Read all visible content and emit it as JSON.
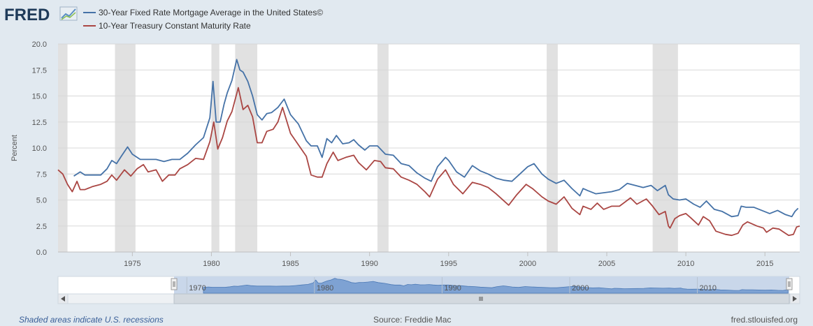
{
  "logo": "FRED",
  "footer": {
    "left": "Shaded areas indicate U.S. recessions",
    "source": "Source: Freddie Mac",
    "site": "fred.stlouisfed.org"
  },
  "colors": {
    "series1": "#4572a7",
    "series2": "#aa4643",
    "recession": "#e1e1e1",
    "background": "#e1e9f0"
  },
  "chart_data": {
    "type": "line",
    "ylabel": "Percent",
    "xlim": [
      1970.3,
      2017.2
    ],
    "ylim": [
      0,
      20
    ],
    "yticks": [
      0.0,
      2.5,
      5.0,
      7.5,
      10.0,
      12.5,
      15.0,
      17.5,
      20.0
    ],
    "ytick_labels": [
      "0.0",
      "2.5",
      "5.0",
      "7.5",
      "10.0",
      "12.5",
      "15.0",
      "17.5",
      "20.0"
    ],
    "xticks": [
      1975,
      1980,
      1985,
      1990,
      1995,
      2000,
      2005,
      2010,
      2015
    ],
    "xtick_labels": [
      "1975",
      "1980",
      "1985",
      "1990",
      "1995",
      "2000",
      "2005",
      "2010",
      "2015"
    ],
    "grid": true,
    "legend": "top-left",
    "recessions": [
      [
        1969.9,
        1970.9
      ],
      [
        1973.9,
        1975.2
      ],
      [
        1980.0,
        1980.5
      ],
      [
        1981.5,
        1982.9
      ],
      [
        1990.5,
        1991.2
      ],
      [
        2001.2,
        2001.9
      ],
      [
        2007.9,
        2009.5
      ]
    ],
    "series": [
      {
        "name": "30-Year Fixed Rate Mortgage Average in the United States©",
        "x": [
          1971.3,
          1971.7,
          1972.0,
          1972.5,
          1973.0,
          1973.4,
          1973.7,
          1974.0,
          1974.3,
          1974.7,
          1975.0,
          1975.5,
          1976.0,
          1976.5,
          1977.0,
          1977.5,
          1978.0,
          1978.5,
          1979.0,
          1979.5,
          1979.9,
          1980.1,
          1980.3,
          1980.55,
          1980.8,
          1981.0,
          1981.3,
          1981.6,
          1981.8,
          1982.0,
          1982.3,
          1982.6,
          1982.9,
          1983.2,
          1983.5,
          1983.8,
          1984.2,
          1984.6,
          1985.0,
          1985.5,
          1986.0,
          1986.3,
          1986.7,
          1987.0,
          1987.3,
          1987.6,
          1987.9,
          1988.3,
          1988.7,
          1989.0,
          1989.3,
          1989.7,
          1990.0,
          1990.5,
          1991.0,
          1991.5,
          1992.0,
          1992.5,
          1993.0,
          1993.5,
          1993.9,
          1994.3,
          1994.8,
          1995.0,
          1995.5,
          1996.0,
          1996.5,
          1997.0,
          1997.5,
          1998.0,
          1998.5,
          1999.0,
          1999.5,
          2000.0,
          2000.4,
          2000.9,
          2001.3,
          2001.8,
          2002.3,
          2002.8,
          2003.3,
          2003.5,
          2003.8,
          2004.3,
          2004.8,
          2005.3,
          2005.8,
          2006.3,
          2006.8,
          2007.3,
          2007.8,
          2008.2,
          2008.7,
          2008.9,
          2009.2,
          2009.6,
          2010.0,
          2010.5,
          2010.9,
          2011.3,
          2011.8,
          2012.3,
          2012.9,
          2013.3,
          2013.5,
          2013.8,
          2014.3,
          2014.8,
          2015.3,
          2015.8,
          2016.3,
          2016.7,
          2016.9,
          2017.1
        ],
        "values": [
          7.3,
          7.7,
          7.4,
          7.4,
          7.4,
          8.0,
          8.8,
          8.5,
          9.2,
          10.1,
          9.4,
          8.9,
          8.9,
          8.9,
          8.7,
          8.9,
          8.9,
          9.5,
          10.3,
          11.0,
          12.9,
          16.4,
          12.5,
          12.5,
          14.2,
          15.3,
          16.5,
          18.5,
          17.5,
          17.3,
          16.4,
          15.0,
          13.2,
          12.7,
          13.3,
          13.4,
          13.9,
          14.7,
          13.2,
          12.3,
          10.7,
          10.2,
          10.2,
          9.1,
          10.9,
          10.5,
          11.2,
          10.4,
          10.5,
          10.8,
          10.3,
          9.8,
          10.2,
          10.2,
          9.4,
          9.3,
          8.5,
          8.3,
          7.6,
          7.1,
          6.8,
          8.2,
          9.1,
          8.8,
          7.7,
          7.2,
          8.3,
          7.8,
          7.5,
          7.1,
          6.9,
          6.8,
          7.5,
          8.2,
          8.5,
          7.5,
          7.0,
          6.6,
          6.9,
          6.1,
          5.4,
          6.1,
          5.9,
          5.6,
          5.7,
          5.8,
          6.0,
          6.6,
          6.4,
          6.2,
          6.4,
          5.9,
          6.4,
          5.5,
          5.1,
          5.0,
          5.1,
          4.6,
          4.3,
          4.9,
          4.1,
          3.9,
          3.4,
          3.5,
          4.4,
          4.3,
          4.3,
          4.0,
          3.7,
          4.0,
          3.6,
          3.4,
          3.9,
          4.2
        ]
      },
      {
        "name": "10-Year Treasury Constant Maturity Rate",
        "x": [
          1970.3,
          1970.6,
          1970.9,
          1971.2,
          1971.5,
          1971.7,
          1972.0,
          1972.5,
          1973.0,
          1973.4,
          1973.7,
          1974.0,
          1974.5,
          1974.9,
          1975.3,
          1975.7,
          1976.0,
          1976.5,
          1976.9,
          1977.3,
          1977.7,
          1978.0,
          1978.5,
          1979.0,
          1979.5,
          1979.9,
          1980.15,
          1980.4,
          1980.7,
          1981.0,
          1981.3,
          1981.7,
          1982.0,
          1982.3,
          1982.6,
          1982.9,
          1983.2,
          1983.5,
          1983.9,
          1984.2,
          1984.5,
          1985.0,
          1985.5,
          1986.0,
          1986.3,
          1986.7,
          1987.0,
          1987.3,
          1987.7,
          1988.0,
          1988.5,
          1989.0,
          1989.3,
          1989.8,
          1990.3,
          1990.7,
          1991.0,
          1991.5,
          1992.0,
          1992.5,
          1993.0,
          1993.5,
          1993.8,
          1994.3,
          1994.8,
          1995.3,
          1995.9,
          1996.5,
          1997.0,
          1997.5,
          1998.0,
          1998.8,
          1999.3,
          1999.9,
          2000.3,
          2000.9,
          2001.3,
          2001.8,
          2002.3,
          2002.8,
          2003.3,
          2003.5,
          2004.0,
          2004.4,
          2004.8,
          2005.3,
          2005.8,
          2006.5,
          2006.9,
          2007.5,
          2007.9,
          2008.3,
          2008.7,
          2008.9,
          2009.0,
          2009.3,
          2009.6,
          2010.0,
          2010.3,
          2010.8,
          2011.1,
          2011.5,
          2011.9,
          2012.5,
          2012.9,
          2013.3,
          2013.6,
          2013.9,
          2014.5,
          2014.9,
          2015.1,
          2015.5,
          2015.9,
          2016.3,
          2016.5,
          2016.8,
          2017.0,
          2017.2
        ],
        "values": [
          7.9,
          7.5,
          6.5,
          5.8,
          6.8,
          6.0,
          6.0,
          6.3,
          6.5,
          6.8,
          7.4,
          6.9,
          7.9,
          7.3,
          8.0,
          8.4,
          7.7,
          7.9,
          6.8,
          7.4,
          7.4,
          8.0,
          8.4,
          9.0,
          8.9,
          10.6,
          12.5,
          9.9,
          11.0,
          12.6,
          13.5,
          15.8,
          13.7,
          14.1,
          13.0,
          10.5,
          10.5,
          11.6,
          11.8,
          12.5,
          13.9,
          11.4,
          10.3,
          9.2,
          7.4,
          7.2,
          7.2,
          8.5,
          9.6,
          8.8,
          9.1,
          9.3,
          8.6,
          7.9,
          8.8,
          8.7,
          8.1,
          8.0,
          7.2,
          6.9,
          6.5,
          5.8,
          5.3,
          7.0,
          7.9,
          6.5,
          5.6,
          6.7,
          6.5,
          6.2,
          5.6,
          4.5,
          5.5,
          6.5,
          6.1,
          5.3,
          4.9,
          4.6,
          5.3,
          4.2,
          3.6,
          4.4,
          4.1,
          4.7,
          4.1,
          4.4,
          4.4,
          5.2,
          4.6,
          5.1,
          4.4,
          3.6,
          3.9,
          2.5,
          2.3,
          3.2,
          3.5,
          3.7,
          3.3,
          2.6,
          3.4,
          3.0,
          2.0,
          1.7,
          1.6,
          1.8,
          2.6,
          2.9,
          2.5,
          2.3,
          1.9,
          2.3,
          2.2,
          1.8,
          1.6,
          1.7,
          2.4,
          2.5
        ]
      }
    ],
    "navigator": {
      "tick_labels": [
        "1970",
        "1980",
        "1990",
        "2000",
        "2010"
      ],
      "tick_years": [
        1970,
        1980,
        1990,
        2000,
        2010
      ]
    }
  }
}
